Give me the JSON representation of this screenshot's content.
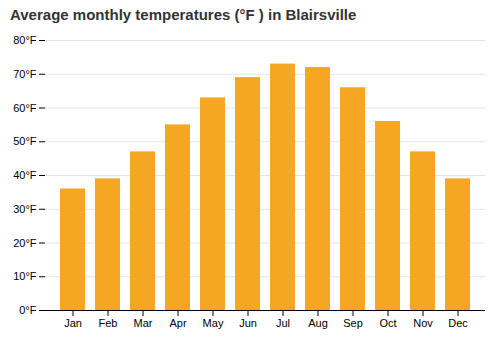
{
  "chart_data": {
    "type": "bar",
    "title": "Average monthly temperatures (°F ) in Blairsville",
    "categories": [
      "Jan",
      "Feb",
      "Mar",
      "Apr",
      "May",
      "Jun",
      "Jul",
      "Aug",
      "Sep",
      "Oct",
      "Nov",
      "Dec"
    ],
    "values": [
      36,
      39,
      47,
      55,
      63,
      69,
      73,
      72,
      66,
      56,
      47,
      39
    ],
    "color": "#F5A623",
    "ylim": [
      0,
      80
    ],
    "yticks": [
      {
        "value": 0,
        "label": "0°F"
      },
      {
        "value": 10,
        "label": "10°F"
      },
      {
        "value": 20,
        "label": "20°F"
      },
      {
        "value": 30,
        "label": "30°F"
      },
      {
        "value": 40,
        "label": "40°F"
      },
      {
        "value": 50,
        "label": "50°F"
      },
      {
        "value": 60,
        "label": "60°F"
      },
      {
        "value": 70,
        "label": "70°F"
      },
      {
        "value": 80,
        "label": "80°F"
      }
    ],
    "grid": true
  }
}
